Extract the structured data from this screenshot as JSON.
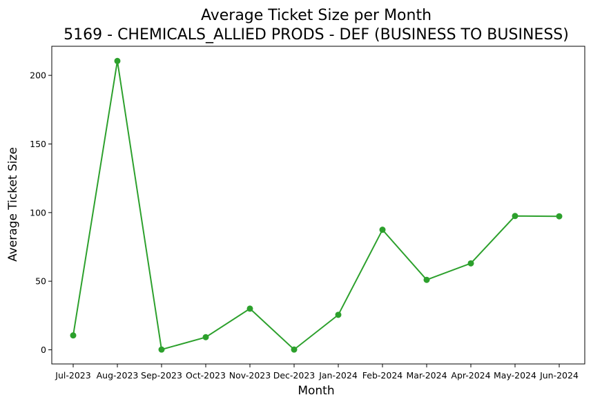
{
  "chart_data": {
    "type": "line",
    "title": "Average Ticket Size per Month",
    "subtitle": "5169 - CHEMICALS_ALLIED PRODS - DEF (BUSINESS TO BUSINESS)",
    "xlabel": "Month",
    "ylabel": "Average Ticket Size",
    "categories": [
      "Jul-2023",
      "Aug-2023",
      "Sep-2023",
      "Oct-2023",
      "Nov-2023",
      "Dec-2023",
      "Jan-2024",
      "Feb-2024",
      "Mar-2024",
      "Apr-2024",
      "May-2024",
      "Jun-2024"
    ],
    "series": [
      {
        "values": [
          10.5,
          210.5,
          0.2,
          9.2,
          30.0,
          0.2,
          25.5,
          87.5,
          51.0,
          63.0,
          97.5,
          97.3
        ],
        "color": "#2ca02c"
      }
    ],
    "yticks": [
      0,
      50,
      100,
      150,
      200
    ],
    "ylim": [
      -10.3,
      221.2
    ],
    "grid": false,
    "legend": "none"
  }
}
